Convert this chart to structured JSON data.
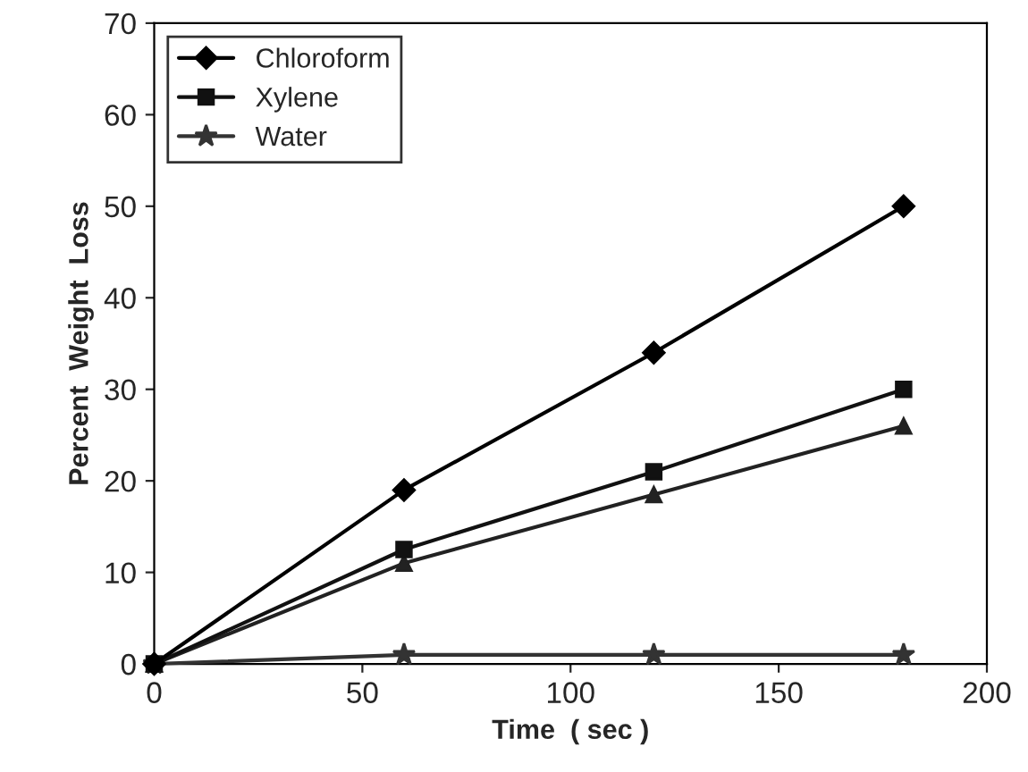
{
  "chart_data": {
    "type": "line",
    "xlabel": "Time  ( sec )",
    "ylabel": "Percent  Weight  Loss",
    "xlim": [
      0,
      200
    ],
    "xticks": [
      0,
      50,
      100,
      150,
      200
    ],
    "ylim": [
      0,
      70
    ],
    "yticks": [
      0,
      10,
      20,
      30,
      40,
      50,
      60,
      70
    ],
    "grid": false,
    "legend": "top left",
    "series": [
      {
        "name": "Chloroform",
        "color": "#000000",
        "marker": "diamond",
        "x": [
          0,
          60,
          120,
          180
        ],
        "values": [
          0,
          19,
          34,
          50
        ]
      },
      {
        "name": "Xylene",
        "color": "#111111",
        "marker": "square",
        "x": [
          0,
          60,
          120,
          180
        ],
        "values": [
          0,
          12.5,
          21,
          30
        ]
      },
      {
        "color": "#222222",
        "marker": "triangle",
        "x": [
          0,
          60,
          120,
          180
        ],
        "values": [
          0,
          11,
          18.5,
          26
        ]
      },
      {
        "name": "Water",
        "color": "#333333",
        "marker": "star",
        "x": [
          0,
          60,
          120,
          180
        ],
        "values": [
          0,
          1,
          1,
          1
        ]
      }
    ]
  }
}
